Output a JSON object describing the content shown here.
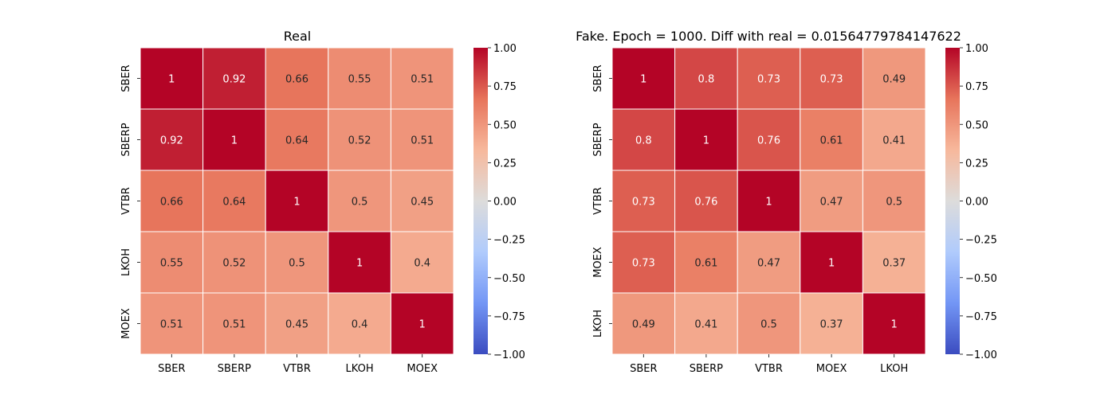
{
  "chart_data": [
    {
      "type": "heatmap",
      "title": "Real",
      "x_labels": [
        "SBER",
        "SBERP",
        "VTBR",
        "LKOH",
        "MOEX"
      ],
      "y_labels": [
        "SBER",
        "SBERP",
        "VTBR",
        "LKOH",
        "MOEX"
      ],
      "values": [
        [
          1,
          0.92,
          0.66,
          0.55,
          0.51
        ],
        [
          0.92,
          1,
          0.64,
          0.52,
          0.51
        ],
        [
          0.66,
          0.64,
          1,
          0.5,
          0.45
        ],
        [
          0.55,
          0.52,
          0.5,
          1,
          0.4
        ],
        [
          0.51,
          0.51,
          0.45,
          0.4,
          1
        ]
      ],
      "value_labels": [
        [
          "1",
          "0.92",
          "0.66",
          "0.55",
          "0.51"
        ],
        [
          "0.92",
          "1",
          "0.64",
          "0.52",
          "0.51"
        ],
        [
          "0.66",
          "0.64",
          "1",
          "0.5",
          "0.45"
        ],
        [
          "0.55",
          "0.52",
          "0.5",
          "1",
          "0.4"
        ],
        [
          "0.51",
          "0.51",
          "0.45",
          "0.4",
          "1"
        ]
      ],
      "colormap": "coolwarm",
      "vmin": -1,
      "vmax": 1,
      "colorbar_ticks": [
        "1.00",
        "0.75",
        "0.50",
        "0.25",
        "0.00",
        "−0.25",
        "−0.50",
        "−0.75",
        "−1.00"
      ]
    },
    {
      "type": "heatmap",
      "title": "Fake. Epoch = 1000. Diff with real = 0.01564779784147622",
      "x_labels": [
        "SBER",
        "SBERP",
        "VTBR",
        "MOEX",
        "LKOH"
      ],
      "y_labels": [
        "SBER",
        "SBERP",
        "VTBR",
        "MOEX",
        "LKOH"
      ],
      "values": [
        [
          1,
          0.8,
          0.73,
          0.73,
          0.49
        ],
        [
          0.8,
          1,
          0.76,
          0.61,
          0.41
        ],
        [
          0.73,
          0.76,
          1,
          0.47,
          0.5
        ],
        [
          0.73,
          0.61,
          0.47,
          1,
          0.37
        ],
        [
          0.49,
          0.41,
          0.5,
          0.37,
          1
        ]
      ],
      "value_labels": [
        [
          "1",
          "0.8",
          "0.73",
          "0.73",
          "0.49"
        ],
        [
          "0.8",
          "1",
          "0.76",
          "0.61",
          "0.41"
        ],
        [
          "0.73",
          "0.76",
          "1",
          "0.47",
          "0.5"
        ],
        [
          "0.73",
          "0.61",
          "0.47",
          "1",
          "0.37"
        ],
        [
          "0.49",
          "0.41",
          "0.5",
          "0.37",
          "1"
        ]
      ],
      "colormap": "coolwarm",
      "vmin": -1,
      "vmax": 1,
      "colorbar_ticks": [
        "1.00",
        "0.75",
        "0.50",
        "0.25",
        "0.00",
        "−0.25",
        "−0.50",
        "−0.75",
        "−1.00"
      ]
    }
  ],
  "colors": {
    "coolwarm_stops": [
      "#3b4cc0",
      "#7396f5",
      "#b0cbfc",
      "#dddcdb",
      "#f7b89c",
      "#e7745b",
      "#b40426"
    ],
    "cell_border": "#ffffff",
    "dark_text": "#262626",
    "light_text": "#ffffff"
  }
}
